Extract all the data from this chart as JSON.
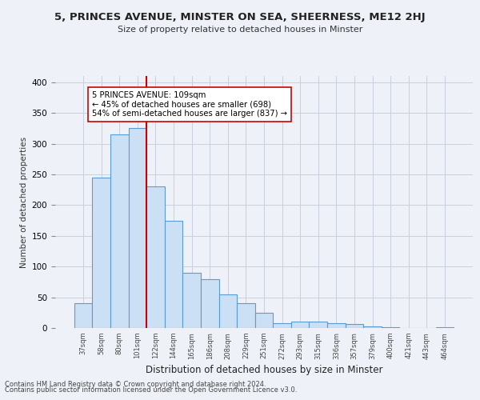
{
  "title1": "5, PRINCES AVENUE, MINSTER ON SEA, SHEERNESS, ME12 2HJ",
  "title2": "Size of property relative to detached houses in Minster",
  "xlabel": "Distribution of detached houses by size in Minster",
  "ylabel": "Number of detached properties",
  "bin_labels": [
    "37sqm",
    "58sqm",
    "80sqm",
    "101sqm",
    "122sqm",
    "144sqm",
    "165sqm",
    "186sqm",
    "208sqm",
    "229sqm",
    "251sqm",
    "272sqm",
    "293sqm",
    "315sqm",
    "336sqm",
    "357sqm",
    "379sqm",
    "400sqm",
    "421sqm",
    "443sqm",
    "464sqm"
  ],
  "bar_heights": [
    40,
    245,
    315,
    325,
    230,
    175,
    90,
    80,
    55,
    40,
    25,
    8,
    10,
    10,
    8,
    7,
    2,
    1,
    0,
    0,
    1
  ],
  "bar_color": "#cce0f5",
  "bar_edge_color": "#5b9bd5",
  "vline_x": 3.5,
  "vline_color": "#cc0000",
  "annotation_text": "5 PRINCES AVENUE: 109sqm\n← 45% of detached houses are smaller (698)\n54% of semi-detached houses are larger (837) →",
  "annotation_box_color": "#ffffff",
  "annotation_box_edge": "#cc0000",
  "ylim": [
    0,
    410
  ],
  "yticks": [
    0,
    50,
    100,
    150,
    200,
    250,
    300,
    350,
    400
  ],
  "footer1": "Contains HM Land Registry data © Crown copyright and database right 2024.",
  "footer2": "Contains public sector information licensed under the Open Government Licence v3.0.",
  "bg_color": "#eef2f8",
  "grid_color": "#c8d0dc"
}
